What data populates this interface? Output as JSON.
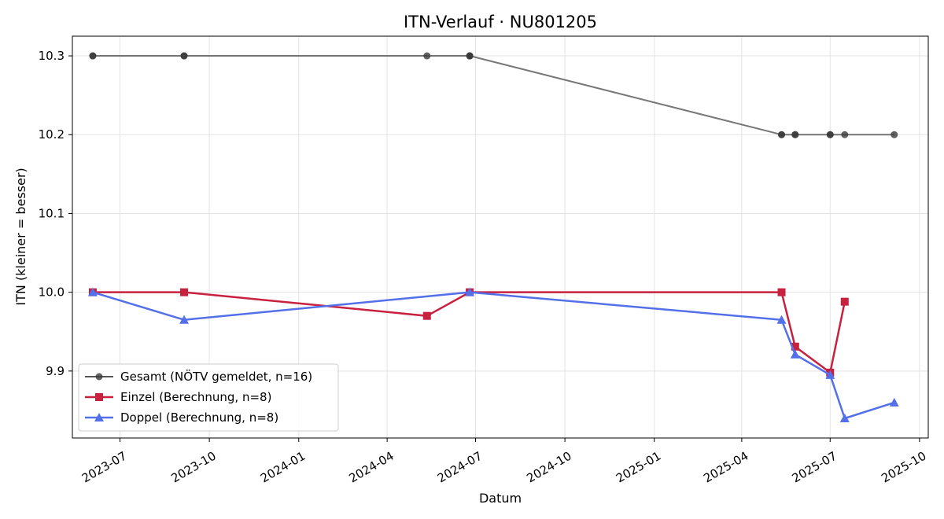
{
  "chart_data": {
    "type": "line",
    "title": "ITN-Verlauf · NU801205",
    "xlabel": "Datum",
    "ylabel": "ITN  (kleiner = besser)",
    "x_axis": {
      "type": "date",
      "ticks": [
        "2023-07-01",
        "2023-10-01",
        "2024-01-01",
        "2024-04-01",
        "2024-07-01",
        "2024-10-01",
        "2025-01-01",
        "2025-04-01",
        "2025-07-01",
        "2025-10-01"
      ],
      "tick_labels": [
        "2023-07",
        "2023-10",
        "2024-01",
        "2024-04",
        "2024-07",
        "2024-10",
        "2025-01",
        "2025-04",
        "2025-07",
        "2025-10"
      ],
      "xlim": [
        "2023-05-13",
        "2025-10-10"
      ]
    },
    "y_axis": {
      "ylim": [
        9.815,
        10.325
      ],
      "ticks": [
        9.9,
        10.0,
        10.1,
        10.2,
        10.3
      ],
      "tick_labels": [
        "9.9",
        "10.0",
        "10.1",
        "10.2",
        "10.3"
      ]
    },
    "grid": true,
    "legend_position": "lower-left",
    "series": [
      {
        "name": "Gesamt (NÖTV gemeldet, n=16)",
        "color": "#555555",
        "marker": "circle",
        "x": [
          "2023-06-03",
          "2023-06-03",
          "2023-09-05",
          "2023-09-05",
          "2024-05-12",
          "2024-06-25",
          "2024-06-25",
          "2024-06-25",
          "2025-05-12",
          "2025-05-12",
          "2025-05-26",
          "2025-05-26",
          "2025-07-01",
          "2025-07-01",
          "2025-07-16",
          "2025-09-05"
        ],
        "values": [
          10.3,
          10.3,
          10.3,
          10.3,
          10.3,
          10.3,
          10.3,
          10.3,
          10.2,
          10.2,
          10.2,
          10.2,
          10.2,
          10.2,
          10.2,
          10.2
        ]
      },
      {
        "name": "Einzel (Berechnung, n=8)",
        "color": "#C8203F",
        "marker": "square",
        "x": [
          "2023-06-03",
          "2023-09-05",
          "2024-05-12",
          "2024-06-25",
          "2025-05-12",
          "2025-05-26",
          "2025-07-01",
          "2025-07-16"
        ],
        "values": [
          10.0,
          10.0,
          9.97,
          10.0,
          10.0,
          9.931,
          9.898,
          9.988
        ]
      },
      {
        "name": "Doppel (Berechnung, n=8)",
        "color": "#5470E8",
        "marker": "triangle",
        "x": [
          "2023-06-03",
          "2023-09-05",
          "2024-06-25",
          "2025-05-12",
          "2025-05-26",
          "2025-07-01",
          "2025-07-16",
          "2025-09-05"
        ],
        "values": [
          10.0,
          9.965,
          10.0,
          9.965,
          9.921,
          9.895,
          9.84,
          9.86
        ]
      }
    ]
  }
}
